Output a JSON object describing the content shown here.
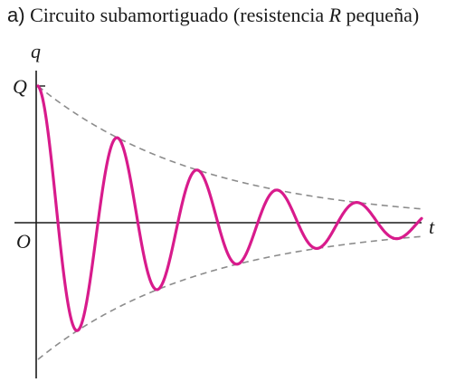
{
  "title": {
    "part_label": "a)",
    "text_before": "Circuito subamortiguado (resistencia ",
    "variable": "R",
    "text_after": " pequeña)"
  },
  "axes": {
    "y_label": "q",
    "x_label": "t",
    "origin_label": "O",
    "amplitude_label": "Q"
  },
  "colors": {
    "curve": "#d81b8c",
    "envelope": "#8c8c8c",
    "axis": "#1a1a1a"
  },
  "curve": {
    "type": "damped-cosine",
    "amplitude": 1,
    "oscillations_shown": 4.8,
    "damping_ratio_per_period": 0.62
  }
}
